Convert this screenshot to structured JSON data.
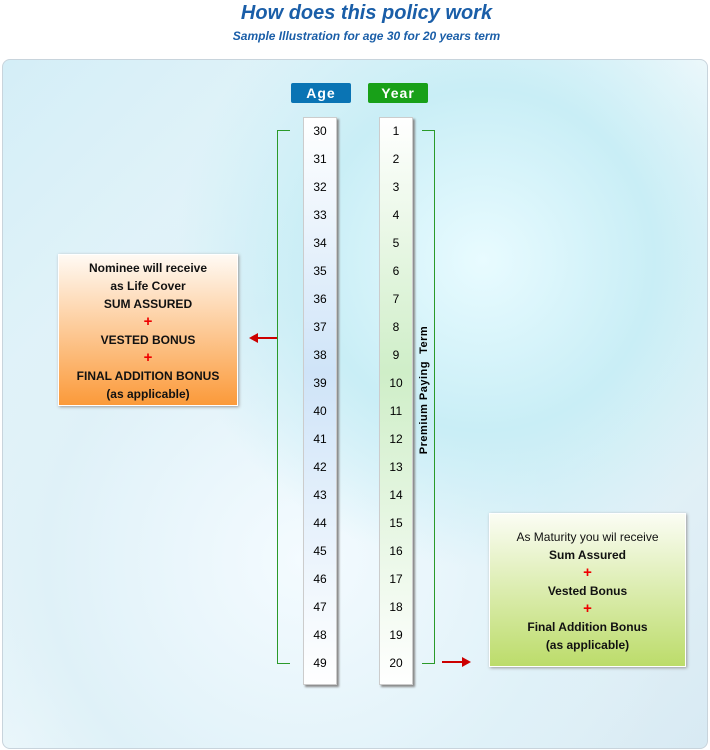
{
  "title": "How does this policy work",
  "subtitle": "Sample Illustration for age 30 for 20 years term",
  "age_header": "Age",
  "year_header": "Year",
  "ages": [
    "30",
    "31",
    "32",
    "33",
    "34",
    "35",
    "36",
    "37",
    "38",
    "39",
    "40",
    "41",
    "42",
    "43",
    "44",
    "45",
    "46",
    "47",
    "48",
    "49"
  ],
  "years": [
    "1",
    "2",
    "3",
    "4",
    "5",
    "6",
    "7",
    "8",
    "9",
    "10",
    "11",
    "12",
    "13",
    "14",
    "15",
    "16",
    "17",
    "18",
    "19",
    "20"
  ],
  "premium_label": "Premium Paying  Term",
  "death_box": {
    "line1": "Nominee will receive",
    "line2": "as  Life Cover",
    "line3": "SUM ASSURED",
    "plus": "+",
    "line4": "VESTED BONUS",
    "line5": "FINAL ADDITION BONUS",
    "line6": "(as applicable)"
  },
  "maturity_box": {
    "line1": "As Maturity you wil receive",
    "line2": "Sum Assured",
    "plus": "+",
    "line3": "Vested Bonus",
    "line4": "Final Addition Bonus",
    "line5": "(as applicable)"
  },
  "colors": {
    "age_header": "#0a74b4",
    "year_header": "#18a018",
    "death_box": "#fb9a3a",
    "maturity_box": "#bcdc6a",
    "arrow": "#cc0000"
  }
}
